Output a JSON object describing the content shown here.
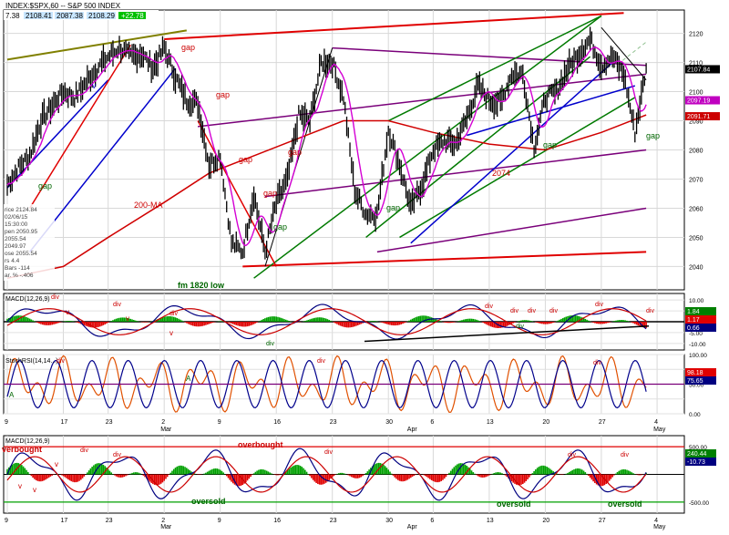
{
  "header": {
    "title": "INDEX:$SPX,60 -- S&P 500 INDEX",
    "values": [
      "7.38",
      "2108.41",
      "2087.38",
      "2108.29"
    ],
    "change": "+22.78"
  },
  "info_box": [
    "rice  2124.84",
    "  02/06/15",
    "  15:30:00",
    "pen  2050.95",
    "  2055.54",
    "  2049.97",
    "ose  2055.54",
    "rs  4.4",
    "Bars  -114",
    "ar. %  -.406"
  ],
  "annotations": {
    "gap": "gap",
    "ma200": "200-MA",
    "low": "fm 1820 low",
    "level": "2074",
    "div": "div",
    "v": "v",
    "A": "A",
    "overbought": "overbought",
    "verbought": "verbought",
    "oversold": "oversold"
  },
  "panels": {
    "macd1": {
      "label": "MACD(12,26,9)"
    },
    "stoch": {
      "label": "StochRSI(14,14...)"
    },
    "macd2": {
      "label": "MACD(12,26,9)"
    }
  },
  "colors": {
    "price": "#000000",
    "fast_ma": "#d400d4",
    "ma200": "#d00000",
    "channel_red": "#e00000",
    "channel_purple": "#7a007a",
    "channel_green": "#007a00",
    "trend_blue": "#0000cc",
    "olive": "#808000",
    "stoch_k": "#e05000",
    "stoch_d": "#00008b",
    "hist_pos": "#00a000",
    "hist_neg": "#e00000",
    "annot_red": "#cc0000",
    "annot_green": "#006600"
  },
  "chart_data": {
    "type": "line",
    "symbol": "INDEX:$SPX,60",
    "interval": "60 min",
    "ylim": [
      2032,
      2128
    ],
    "y_ticks": [
      2040,
      2050,
      2060,
      2070,
      2080,
      2090,
      2100,
      2110,
      2120
    ],
    "x_tick_labels": [
      "9",
      "17",
      "23",
      "2",
      "9",
      "16",
      "23",
      "30",
      "6",
      "13",
      "20",
      "27",
      "4"
    ],
    "month_labels": [
      "Mar",
      "Apr",
      "May"
    ],
    "price_path": [
      [
        "02-09",
        2068
      ],
      [
        "02-10",
        2074
      ],
      [
        "02-11",
        2078
      ],
      [
        "02-12",
        2090
      ],
      [
        "02-13",
        2095
      ],
      [
        "02-17",
        2100
      ],
      [
        "02-18",
        2098
      ],
      [
        "02-19",
        2103
      ],
      [
        "02-20",
        2108
      ],
      [
        "02-23",
        2112
      ],
      [
        "02-24",
        2115
      ],
      [
        "02-25",
        2112
      ],
      [
        "02-26",
        2113
      ],
      [
        "02-27",
        2108
      ],
      [
        "03-02",
        2115
      ],
      [
        "03-03",
        2105
      ],
      [
        "03-04",
        2097
      ],
      [
        "03-05",
        2096
      ],
      [
        "03-06",
        2075
      ],
      [
        "03-09",
        2078
      ],
      [
        "03-10",
        2048
      ],
      [
        "03-11",
        2045
      ],
      [
        "03-12",
        2065
      ],
      [
        "03-13",
        2045
      ],
      [
        "03-16",
        2062
      ],
      [
        "03-17",
        2070
      ],
      [
        "03-18",
        2092
      ],
      [
        "03-19",
        2090
      ],
      [
        "03-20",
        2110
      ],
      [
        "03-23",
        2110
      ],
      [
        "03-24",
        2098
      ],
      [
        "03-25",
        2066
      ],
      [
        "03-26",
        2058
      ],
      [
        "03-27",
        2058
      ],
      [
        "03-30",
        2087
      ],
      [
        "03-31",
        2075
      ],
      [
        "04-01",
        2060
      ],
      [
        "04-02",
        2068
      ],
      [
        "04-06",
        2080
      ],
      [
        "04-07",
        2083
      ],
      [
        "04-08",
        2082
      ],
      [
        "04-09",
        2091
      ],
      [
        "04-10",
        2102
      ],
      [
        "04-13",
        2097
      ],
      [
        "04-14",
        2096
      ],
      [
        "04-15",
        2106
      ],
      [
        "04-16",
        2106
      ],
      [
        "04-17",
        2081
      ],
      [
        "04-20",
        2098
      ],
      [
        "04-21",
        2100
      ],
      [
        "04-22",
        2108
      ],
      [
        "04-23",
        2113
      ],
      [
        "04-24",
        2118
      ],
      [
        "04-27",
        2109
      ],
      [
        "04-28",
        2112
      ],
      [
        "04-29",
        2106
      ],
      [
        "04-30",
        2086
      ],
      [
        "05-01",
        2108
      ]
    ],
    "levels": [
      {
        "label": "2107.84",
        "value": 2107.84
      },
      {
        "label": "2097.19",
        "value": 2097.19
      },
      {
        "label": "2091.71",
        "value": 2091.71
      }
    ],
    "macd1": {
      "ylim": [
        -13,
        13
      ],
      "y_ticks": [
        -10,
        -5,
        0,
        5,
        10
      ],
      "tick_labels": [
        "-10.00",
        "-5.00",
        "",
        "5.00",
        "10.00"
      ],
      "readouts": [
        "1.84",
        "1.17",
        "0.66"
      ]
    },
    "stoch": {
      "ylim": [
        0,
        100
      ],
      "y_ticks": [
        0,
        25,
        50,
        75,
        100
      ],
      "tick_labels": [
        "0.00",
        "",
        "50.00",
        "",
        "100.00"
      ],
      "readouts": [
        "98.18",
        "75.65"
      ]
    },
    "macd2": {
      "ylim": [
        -700,
        700
      ],
      "y_ticks": [
        -500,
        0,
        500
      ],
      "tick_labels": [
        "-500.00",
        "",
        "500.00"
      ],
      "readouts": [
        "240.44",
        "-10.73"
      ]
    }
  }
}
